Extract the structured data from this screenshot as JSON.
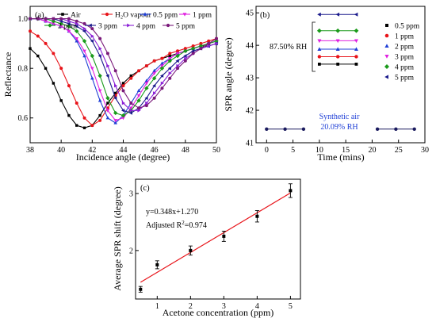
{
  "chart_data": [
    {
      "type": "line",
      "panel_label": "(a)",
      "xlabel": "Incidence angle (degree)",
      "ylabel": "Reflectance",
      "xlim": [
        38,
        50
      ],
      "ylim": [
        0.5,
        1.05
      ],
      "xticks": [
        "38",
        "40",
        "42",
        "44",
        "46",
        "48",
        "50"
      ],
      "yticks": [
        "0.6",
        "0.8",
        "1.0"
      ],
      "legend_placement": "top",
      "series": [
        {
          "name": "Air",
          "color": "#000000",
          "marker": "square",
          "x": [
            38,
            38.5,
            39,
            39.5,
            40,
            40.5,
            41,
            41.5,
            42,
            42.5,
            43,
            43.5,
            44,
            44.5,
            45,
            45.5,
            46,
            46.5,
            47,
            47.5,
            48,
            48.5,
            49,
            49.5,
            50
          ],
          "y": [
            0.88,
            0.85,
            0.8,
            0.74,
            0.67,
            0.61,
            0.57,
            0.56,
            0.57,
            0.61,
            0.66,
            0.7,
            0.74,
            0.77,
            0.79,
            0.81,
            0.83,
            0.84,
            0.85,
            0.86,
            0.87,
            0.88,
            0.89,
            0.89,
            0.9
          ]
        },
        {
          "name": "H₂O vapour",
          "color": "#e8141a",
          "marker": "circle",
          "x": [
            38,
            38.5,
            39,
            39.5,
            40,
            40.5,
            41,
            41.5,
            42,
            42.5,
            43,
            43.5,
            44,
            44.5,
            45,
            45.5,
            46,
            46.5,
            47,
            47.5,
            48,
            48.5,
            49,
            49.5,
            50
          ],
          "y": [
            0.95,
            0.93,
            0.9,
            0.86,
            0.8,
            0.73,
            0.66,
            0.6,
            0.57,
            0.59,
            0.64,
            0.69,
            0.73,
            0.76,
            0.79,
            0.81,
            0.83,
            0.84,
            0.86,
            0.87,
            0.88,
            0.89,
            0.9,
            0.91,
            0.92
          ]
        },
        {
          "name": "0.5 ppm",
          "color": "#1f3fd6",
          "marker": "triangle-up",
          "x": [
            38,
            38.5,
            39,
            39.5,
            40,
            40.5,
            41,
            41.5,
            42,
            42.5,
            43,
            43.5,
            44,
            44.5,
            45,
            45.5,
            46,
            46.5,
            47,
            47.5,
            48,
            48.5,
            49,
            49.5,
            50
          ],
          "y": [
            1.0,
            1.0,
            0.99,
            0.98,
            0.97,
            0.95,
            0.91,
            0.85,
            0.76,
            0.67,
            0.6,
            0.58,
            0.61,
            0.66,
            0.71,
            0.75,
            0.79,
            0.82,
            0.84,
            0.86,
            0.87,
            0.88,
            0.89,
            0.9,
            0.91
          ]
        },
        {
          "name": "1 ppm",
          "color": "#e020e0",
          "marker": "triangle-down",
          "x": [
            38,
            38.5,
            39,
            39.5,
            40,
            40.5,
            41,
            41.5,
            42,
            42.5,
            43,
            43.5,
            44,
            44.5,
            45,
            45.5,
            46,
            46.5,
            47,
            47.5,
            48,
            48.5,
            49,
            49.5,
            50
          ],
          "y": [
            1.0,
            1.0,
            0.99,
            0.98,
            0.97,
            0.95,
            0.92,
            0.87,
            0.8,
            0.71,
            0.63,
            0.59,
            0.6,
            0.64,
            0.69,
            0.74,
            0.78,
            0.81,
            0.84,
            0.86,
            0.87,
            0.88,
            0.89,
            0.9,
            0.91
          ]
        },
        {
          "name": "2 ppm",
          "color": "#1a9a1a",
          "marker": "diamond",
          "x": [
            38,
            38.5,
            39,
            39.5,
            40,
            40.5,
            41,
            41.5,
            42,
            42.5,
            43,
            43.5,
            44,
            44.5,
            45,
            45.5,
            46,
            46.5,
            47,
            47.5,
            48,
            48.5,
            49,
            49.5,
            50
          ],
          "y": [
            1.0,
            1.0,
            1.0,
            0.99,
            0.98,
            0.97,
            0.95,
            0.91,
            0.85,
            0.77,
            0.68,
            0.62,
            0.61,
            0.63,
            0.67,
            0.72,
            0.76,
            0.8,
            0.83,
            0.85,
            0.87,
            0.88,
            0.89,
            0.9,
            0.91
          ]
        },
        {
          "name": "3 ppm",
          "color": "#1a1a8c",
          "marker": "triangle-left",
          "x": [
            38,
            38.5,
            39,
            39.5,
            40,
            40.5,
            41,
            41.5,
            42,
            42.5,
            43,
            43.5,
            44,
            44.5,
            45,
            45.5,
            46,
            46.5,
            47,
            47.5,
            48,
            48.5,
            49,
            49.5,
            50
          ],
          "y": [
            1.0,
            1.0,
            1.0,
            1.0,
            0.99,
            0.98,
            0.97,
            0.95,
            0.91,
            0.85,
            0.77,
            0.68,
            0.63,
            0.62,
            0.64,
            0.68,
            0.73,
            0.77,
            0.8,
            0.83,
            0.85,
            0.87,
            0.88,
            0.89,
            0.9
          ]
        },
        {
          "name": "4 ppm",
          "color": "#8a1fd6",
          "marker": "triangle-right",
          "x": [
            38,
            38.5,
            39,
            39.5,
            40,
            40.5,
            41,
            41.5,
            42,
            42.5,
            43,
            43.5,
            44,
            44.5,
            45,
            45.5,
            46,
            46.5,
            47,
            47.5,
            48,
            48.5,
            49,
            49.5,
            50
          ],
          "y": [
            1.0,
            1.0,
            1.0,
            1.0,
            1.0,
            0.99,
            0.98,
            0.96,
            0.93,
            0.88,
            0.81,
            0.73,
            0.66,
            0.63,
            0.63,
            0.66,
            0.7,
            0.74,
            0.78,
            0.81,
            0.84,
            0.86,
            0.88,
            0.89,
            0.9
          ]
        },
        {
          "name": "5 ppm",
          "color": "#7a1a7a",
          "marker": "circle",
          "x": [
            38,
            38.5,
            39,
            39.5,
            40,
            40.5,
            41,
            41.5,
            42,
            42.5,
            43,
            43.5,
            44,
            44.5,
            45,
            45.5,
            46,
            46.5,
            47,
            47.5,
            48,
            48.5,
            49,
            49.5,
            50
          ],
          "y": [
            1.0,
            1.0,
            1.0,
            1.0,
            1.0,
            1.0,
            0.99,
            0.98,
            0.96,
            0.92,
            0.86,
            0.79,
            0.71,
            0.66,
            0.64,
            0.65,
            0.68,
            0.72,
            0.76,
            0.8,
            0.83,
            0.86,
            0.88,
            0.9,
            0.92
          ]
        }
      ]
    },
    {
      "type": "scatter",
      "panel_label": "(b)",
      "xlabel": "Time (mins)",
      "ylabel": "SPR angle (degree)",
      "xlim": [
        -2,
        30
      ],
      "ylim": [
        41,
        45.2
      ],
      "xticks": [
        "0",
        "5",
        "10",
        "15",
        "20",
        "25",
        "30"
      ],
      "yticks": [
        "41",
        "42",
        "43",
        "44",
        "45"
      ],
      "annotations": {
        "humidity": "87.50% RH",
        "synthetic_line1": "Synthetic air",
        "synthetic_line2": "20.09% RH"
      },
      "legend_placement": "right",
      "baseline": {
        "x": [
          0,
          3.5,
          7,
          21,
          24.5,
          28
        ],
        "y": 41.42,
        "color": "#1a1a5e"
      },
      "series": [
        {
          "name": "0.5 ppm",
          "color": "#000000",
          "marker": "square",
          "x": [
            10,
            13.5,
            17
          ],
          "y": 43.42
        },
        {
          "name": "1 ppm",
          "color": "#e8141a",
          "marker": "circle",
          "x": [
            10,
            13.5,
            17
          ],
          "y": 43.65
        },
        {
          "name": "2 ppm",
          "color": "#1f3fd6",
          "marker": "triangle-up",
          "x": [
            10,
            13.5,
            17
          ],
          "y": 43.88
        },
        {
          "name": "3 ppm",
          "color": "#e020e0",
          "marker": "triangle-down",
          "x": [
            10,
            13.5,
            17
          ],
          "y": 44.14
        },
        {
          "name": "4 ppm",
          "color": "#1a9a1a",
          "marker": "diamond",
          "x": [
            10,
            13.5,
            17
          ],
          "y": 44.45
        },
        {
          "name": "5 ppm",
          "color": "#1a1a8c",
          "marker": "triangle-left",
          "x": [
            10,
            13.5,
            17
          ],
          "y": 44.95
        }
      ]
    },
    {
      "type": "scatter",
      "panel_label": "(c)",
      "xlabel": "Acetone concentration (ppm)",
      "ylabel": "Average SPR shift (degree)",
      "xlim": [
        0.35,
        5.3
      ],
      "ylim": [
        1.15,
        3.25
      ],
      "xticks": [
        "1",
        "2",
        "3",
        "4",
        "5"
      ],
      "yticks": [
        "2",
        "3"
      ],
      "fit_equation": "y=0.348x+1.270",
      "fit_r2_label": "Adjusted R",
      "fit_r2_value": "=0.974",
      "fit": {
        "slope": 0.348,
        "intercept": 1.27,
        "x_range": [
          0.5,
          5
        ],
        "color": "#e8141a"
      },
      "points": [
        {
          "x": 0.5,
          "y": 1.32,
          "err": 0.05
        },
        {
          "x": 1,
          "y": 1.75,
          "err": 0.07
        },
        {
          "x": 2,
          "y": 2.0,
          "err": 0.08
        },
        {
          "x": 3,
          "y": 2.25,
          "err": 0.09
        },
        {
          "x": 4,
          "y": 2.6,
          "err": 0.1
        },
        {
          "x": 5,
          "y": 3.05,
          "err": 0.12
        }
      ]
    }
  ]
}
